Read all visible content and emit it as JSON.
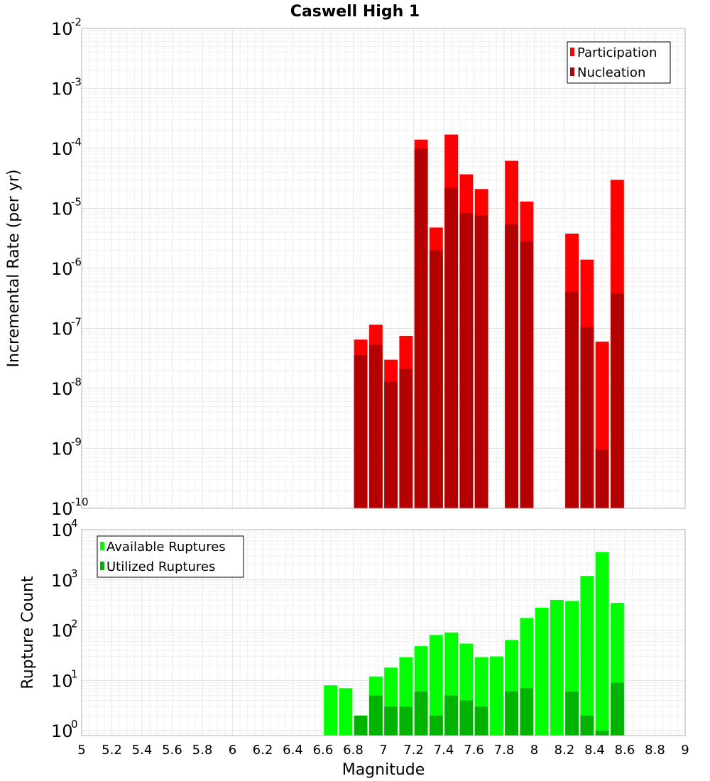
{
  "chart_data": [
    {
      "type": "bar",
      "title": "Caswell High 1",
      "ylabel": "Incremental Rate (per yr)",
      "yscale": "log",
      "ylim": [
        1e-10,
        0.01
      ],
      "y_ticks": [
        {
          "base": "10",
          "exp": "-10",
          "value": 1e-10
        },
        {
          "base": "10",
          "exp": "-9",
          "value": 1e-09
        },
        {
          "base": "10",
          "exp": "-8",
          "value": 1e-08
        },
        {
          "base": "10",
          "exp": "-7",
          "value": 1e-07
        },
        {
          "base": "10",
          "exp": "-6",
          "value": 1e-06
        },
        {
          "base": "10",
          "exp": "-5",
          "value": 1e-05
        },
        {
          "base": "10",
          "exp": "-4",
          "value": 0.0001
        },
        {
          "base": "10",
          "exp": "-3",
          "value": 0.001
        },
        {
          "base": "10",
          "exp": "-2",
          "value": 0.01
        }
      ],
      "legend_position": "top-right",
      "grid": true,
      "series": [
        {
          "name": "Participation",
          "color": "#ff0000",
          "points": [
            {
              "x": 6.85,
              "y": 6.5e-08
            },
            {
              "x": 6.95,
              "y": 1.15e-07
            },
            {
              "x": 7.05,
              "y": 3e-08
            },
            {
              "x": 7.15,
              "y": 7.5e-08
            },
            {
              "x": 7.25,
              "y": 0.00014
            },
            {
              "x": 7.35,
              "y": 4.8e-06
            },
            {
              "x": 7.45,
              "y": 0.00017
            },
            {
              "x": 7.55,
              "y": 3.7e-05
            },
            {
              "x": 7.65,
              "y": 2.1e-05
            },
            {
              "x": 7.85,
              "y": 6.2e-05
            },
            {
              "x": 7.95,
              "y": 1.3e-05
            },
            {
              "x": 8.25,
              "y": 3.8e-06
            },
            {
              "x": 8.35,
              "y": 1.4e-06
            },
            {
              "x": 8.45,
              "y": 6e-08
            },
            {
              "x": 8.55,
              "y": 3e-05
            }
          ]
        },
        {
          "name": "Nucleation",
          "color": "#b30000",
          "points": [
            {
              "x": 6.85,
              "y": 3.6e-08
            },
            {
              "x": 6.95,
              "y": 5.3e-08
            },
            {
              "x": 7.05,
              "y": 1.3e-08
            },
            {
              "x": 7.15,
              "y": 2.1e-08
            },
            {
              "x": 7.25,
              "y": 0.0001
            },
            {
              "x": 7.35,
              "y": 2e-06
            },
            {
              "x": 7.45,
              "y": 2.2e-05
            },
            {
              "x": 7.55,
              "y": 8.3e-06
            },
            {
              "x": 7.65,
              "y": 7.7e-06
            },
            {
              "x": 7.85,
              "y": 5.4e-06
            },
            {
              "x": 7.95,
              "y": 2.8e-06
            },
            {
              "x": 8.25,
              "y": 4.1e-07
            },
            {
              "x": 8.35,
              "y": 1.05e-07
            },
            {
              "x": 8.45,
              "y": 9.5e-10
            },
            {
              "x": 8.55,
              "y": 3.8e-07
            }
          ]
        }
      ]
    },
    {
      "type": "bar",
      "xlabel": "Magnitude",
      "ylabel": "Rupture Count",
      "yscale": "log",
      "ylim": [
        0.8,
        10000
      ],
      "xlim": [
        5,
        9
      ],
      "x_ticks": [
        "5",
        "5.2",
        "5.4",
        "5.6",
        "5.8",
        "6",
        "6.2",
        "6.4",
        "6.6",
        "6.8",
        "7",
        "7.2",
        "7.4",
        "7.6",
        "7.8",
        "8",
        "8.2",
        "8.4",
        "8.6",
        "8.8",
        "9"
      ],
      "y_ticks": [
        {
          "base": "10",
          "exp": "0",
          "value": 1
        },
        {
          "base": "10",
          "exp": "1",
          "value": 10
        },
        {
          "base": "10",
          "exp": "2",
          "value": 100
        },
        {
          "base": "10",
          "exp": "3",
          "value": 1000
        },
        {
          "base": "10",
          "exp": "4",
          "value": 10000
        }
      ],
      "legend_position": "top-left",
      "grid": true,
      "series": [
        {
          "name": "Available Ruptures",
          "color": "#00ff00",
          "points": [
            {
              "x": 6.65,
              "y": 8
            },
            {
              "x": 6.75,
              "y": 7
            },
            {
              "x": 6.95,
              "y": 12
            },
            {
              "x": 7.05,
              "y": 18
            },
            {
              "x": 7.15,
              "y": 29
            },
            {
              "x": 7.25,
              "y": 48
            },
            {
              "x": 7.35,
              "y": 80
            },
            {
              "x": 7.45,
              "y": 90
            },
            {
              "x": 7.55,
              "y": 54
            },
            {
              "x": 7.65,
              "y": 29
            },
            {
              "x": 7.75,
              "y": 30
            },
            {
              "x": 7.85,
              "y": 64
            },
            {
              "x": 7.95,
              "y": 175
            },
            {
              "x": 8.05,
              "y": 280
            },
            {
              "x": 8.15,
              "y": 400
            },
            {
              "x": 8.25,
              "y": 380
            },
            {
              "x": 8.35,
              "y": 1200
            },
            {
              "x": 8.45,
              "y": 3600
            },
            {
              "x": 8.55,
              "y": 350
            }
          ]
        },
        {
          "name": "Utilized Ruptures",
          "color": "#00b300",
          "points": [
            {
              "x": 6.85,
              "y": 2
            },
            {
              "x": 6.95,
              "y": 5
            },
            {
              "x": 7.05,
              "y": 3
            },
            {
              "x": 7.15,
              "y": 3
            },
            {
              "x": 7.25,
              "y": 6
            },
            {
              "x": 7.35,
              "y": 2
            },
            {
              "x": 7.45,
              "y": 5
            },
            {
              "x": 7.55,
              "y": 4
            },
            {
              "x": 7.65,
              "y": 3
            },
            {
              "x": 7.85,
              "y": 6
            },
            {
              "x": 7.95,
              "y": 7
            },
            {
              "x": 8.25,
              "y": 6
            },
            {
              "x": 8.35,
              "y": 2
            },
            {
              "x": 8.45,
              "y": 1
            },
            {
              "x": 8.55,
              "y": 9
            }
          ]
        }
      ]
    }
  ]
}
